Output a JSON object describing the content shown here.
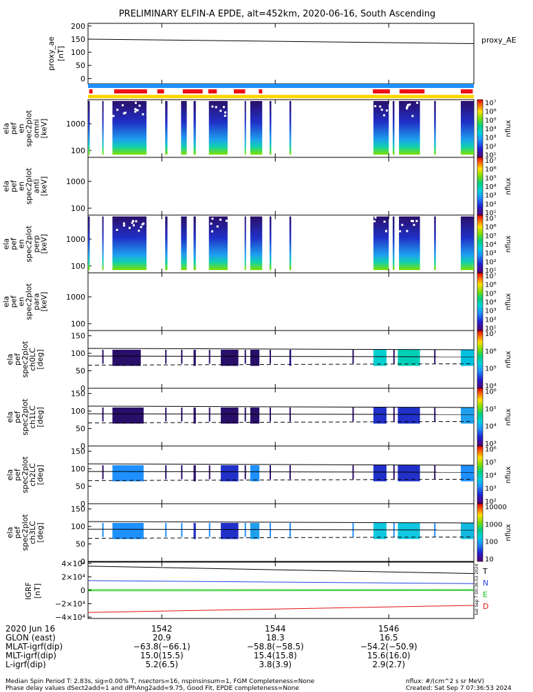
{
  "title": "PRELIMINARY ELFIN-A EPDE, alt=452km, 2020-06-16, South Ascending",
  "chart_data": {
    "type": "heatmap",
    "x_ticks": [
      "1542",
      "1544",
      "1546"
    ],
    "proxy_ae": {
      "ylabel": [
        "proxy_ae",
        "[nT]"
      ],
      "legend": "proxy_AE",
      "y_ticks": [
        "200",
        "150",
        "100",
        "50",
        "0"
      ],
      "ylim": [
        -20,
        210
      ],
      "series": [
        {
          "t": [
            1540.7,
            1547.5
          ],
          "v": [
            150,
            133
          ]
        }
      ]
    },
    "energy_panels": [
      {
        "label": [
          "ela",
          "pef",
          "en",
          "spec2plot",
          "omni",
          "[keV]"
        ],
        "y_ticks": [
          "1000",
          "100"
        ],
        "cbar_ticks": [
          "10⁷",
          "10⁶",
          "10⁵",
          "10⁴",
          "10³",
          "10²",
          "10¹"
        ],
        "cbar_label": "nflux",
        "empty": false
      },
      {
        "label": [
          "ela",
          "pef",
          "en",
          "spec2plot",
          "anti",
          "[keV]"
        ],
        "y_ticks": [
          "1000",
          "100"
        ],
        "cbar_ticks": [
          "10⁷",
          "10⁶",
          "10⁵",
          "10⁴",
          "10³",
          "10²",
          "10¹"
        ],
        "cbar_label": "nflux",
        "empty": true
      },
      {
        "label": [
          "ela",
          "pef",
          "en",
          "spec2plot",
          "perp",
          "[keV]"
        ],
        "y_ticks": [
          "1000",
          "100"
        ],
        "cbar_ticks": [
          "10⁷",
          "10⁶",
          "10⁵",
          "10⁴",
          "10³",
          "10²",
          "10¹"
        ],
        "cbar_label": "nflux",
        "empty": false
      },
      {
        "label": [
          "ela",
          "pef",
          "en",
          "spec2plot",
          "para",
          "[keV]"
        ],
        "y_ticks": [
          "1000",
          "100"
        ],
        "cbar_ticks": [
          "10⁷",
          "10⁶",
          "10⁵",
          "10⁴",
          "10³",
          "10²",
          "10¹"
        ],
        "cbar_label": "nflux",
        "empty": true
      }
    ],
    "pa_panels": [
      {
        "label": [
          "ela",
          "pef",
          "spec2plot",
          "ch0LC",
          "[deg]"
        ],
        "y_ticks": [
          "150",
          "100",
          "50",
          "0"
        ],
        "cbar_ticks": [
          "10⁷",
          "10⁶",
          "10⁵",
          "10⁴"
        ],
        "cbar_label": "nflux"
      },
      {
        "label": [
          "ela",
          "pef",
          "spec2plot",
          "ch1LC",
          "[deg]"
        ],
        "y_ticks": [
          "150",
          "100",
          "50",
          "0"
        ],
        "cbar_ticks": [
          "10⁶",
          "10⁵",
          "10⁴",
          "10³"
        ],
        "cbar_label": "nflux"
      },
      {
        "label": [
          "ela",
          "pef",
          "spec2plot",
          "ch2LC",
          "[deg]"
        ],
        "y_ticks": [
          "150",
          "100",
          "50",
          "0"
        ],
        "cbar_ticks": [
          "10⁶",
          "10⁵",
          "10⁴",
          "10³",
          "10²"
        ],
        "cbar_label": "nflux"
      },
      {
        "label": [
          "ela",
          "pef",
          "spec2plot",
          "ch3LC",
          "[deg]"
        ],
        "y_ticks": [
          "150",
          "100",
          "50",
          "0"
        ],
        "cbar_ticks": [
          "10000",
          "1000",
          "100",
          "10"
        ],
        "cbar_label": "nflux"
      }
    ],
    "igrf": {
      "ylabel": [
        "IGRF",
        "[nT]"
      ],
      "y_ticks": [
        "4×10⁴",
        "2×10⁴",
        "0",
        "−2×10⁴",
        "−4×10⁴"
      ],
      "ylim": [
        -42000,
        42000
      ],
      "series": [
        {
          "name": "T",
          "color": "#000000",
          "t": [
            1540.7,
            1547.5
          ],
          "v": [
            36000,
            25000
          ]
        },
        {
          "name": "N",
          "color": "#2040e0",
          "t": [
            1540.7,
            1547.5
          ],
          "v": [
            14500,
            10000
          ]
        },
        {
          "name": "E",
          "color": "#10c010",
          "t": [
            1540.7,
            1547.5
          ],
          "v": [
            -800,
            -400
          ]
        },
        {
          "name": "D",
          "color": "#e01010",
          "t": [
            1540.7,
            1547.5
          ],
          "v": [
            -33000,
            -22500
          ]
        }
      ],
      "side_stamp": "Sat Sep  7 00:36:53 2024"
    }
  },
  "xaxis_rows": [
    {
      "label": "2020 Jun 16",
      "vals": [
        "1542",
        "1544",
        "1546"
      ]
    },
    {
      "label": "GLON (east)",
      "vals": [
        "20.9",
        "18.3",
        "16.5"
      ]
    },
    {
      "label": "MLAT-igrf(dip)",
      "vals": [
        "−63.8(−66.1)",
        "−58.8(−58.5)",
        "−54.2(−50.9)"
      ]
    },
    {
      "label": "MLT-igrf(dip)",
      "vals": [
        "15.0(15.5)",
        "15.4(15.8)",
        "15.6(16.0)"
      ]
    },
    {
      "label": "L-igrf(dip)",
      "vals": [
        "5.2(6.5)",
        "3.8(3.9)",
        "2.9(2.7)"
      ]
    }
  ],
  "footer": {
    "line1": "Median Spin Period T: 2.83s, sig=0.00% T, nsectors=16, nspinsinsum=1, FGM Completeness=None",
    "line2": "Phase delay values dSect2add=1 and dPhAng2add=9.75, Good Fit, EPDE completeness=None",
    "right1": "nflux: #/(cm^2 s sr MeV)",
    "right2": "Created: Sat Sep  7 07:36:53 2024"
  },
  "colors": {
    "blue_bar": "#1e90ff",
    "red_bar": "#ee1111",
    "yellow_bar": "#ffd700"
  }
}
